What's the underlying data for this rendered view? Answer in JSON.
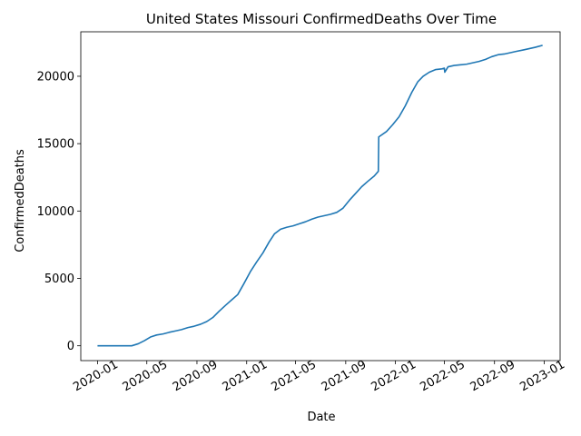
{
  "chart_data": {
    "type": "line",
    "title": "United States Missouri ConfirmedDeaths Over Time",
    "xlabel": "Date",
    "ylabel": "ConfirmedDeaths",
    "x_ticks": [
      "2020-01",
      "2020-05",
      "2020-09",
      "2021-01",
      "2021-05",
      "2021-09",
      "2022-01",
      "2022-05",
      "2022-09",
      "2023-01"
    ],
    "y_ticks": [
      "0",
      "5000",
      "10000",
      "15000",
      "20000"
    ],
    "ylim": [
      -1100,
      23300
    ],
    "xlim": [
      "2019-11-21",
      "2023-02-09"
    ],
    "grid": false,
    "line_color": "#1f77b4",
    "series": [
      {
        "x": [
          "2020-01-01",
          "2020-03-01",
          "2020-03-25",
          "2020-04-10",
          "2020-04-25",
          "2020-05-10",
          "2020-05-25",
          "2020-06-10",
          "2020-06-25",
          "2020-07-10",
          "2020-07-25",
          "2020-08-10",
          "2020-08-25",
          "2020-09-10",
          "2020-09-25",
          "2020-10-10",
          "2020-10-25",
          "2020-11-10",
          "2020-11-25",
          "2020-12-10",
          "2020-12-25",
          "2021-01-10",
          "2021-01-25",
          "2021-02-10",
          "2021-02-25",
          "2021-03-10",
          "2021-03-25",
          "2021-04-10",
          "2021-04-25",
          "2021-05-10",
          "2021-05-25",
          "2021-06-10",
          "2021-06-25",
          "2021-07-10",
          "2021-07-25",
          "2021-08-10",
          "2021-08-25",
          "2021-09-10",
          "2021-09-25",
          "2021-10-10",
          "2021-10-25",
          "2021-11-10",
          "2021-11-20",
          "2021-11-21",
          "2021-12-10",
          "2021-12-25",
          "2022-01-10",
          "2022-01-25",
          "2022-02-10",
          "2022-02-25",
          "2022-03-10",
          "2022-03-25",
          "2022-04-10",
          "2022-04-25",
          "2022-05-01",
          "2022-05-02",
          "2022-05-10",
          "2022-05-25",
          "2022-06-10",
          "2022-06-25",
          "2022-07-10",
          "2022-07-25",
          "2022-08-10",
          "2022-08-25",
          "2022-09-10",
          "2022-09-25",
          "2022-10-10",
          "2022-10-25",
          "2022-11-10",
          "2022-11-25",
          "2022-12-10",
          "2022-12-28"
        ],
        "y": [
          0,
          0,
          0,
          150,
          380,
          650,
          800,
          880,
          1000,
          1100,
          1200,
          1350,
          1450,
          1600,
          1800,
          2100,
          2550,
          3000,
          3400,
          3800,
          4600,
          5500,
          6200,
          6900,
          7700,
          8300,
          8650,
          8800,
          8900,
          9050,
          9200,
          9400,
          9550,
          9650,
          9750,
          9900,
          10200,
          10800,
          11300,
          11800,
          12200,
          12600,
          12950,
          15500,
          15900,
          16400,
          17000,
          17800,
          18800,
          19600,
          20000,
          20300,
          20500,
          20550,
          20600,
          20300,
          20700,
          20800,
          20850,
          20900,
          21000,
          21100,
          21250,
          21450,
          21600,
          21650,
          21750,
          21850,
          21950,
          22050,
          22150,
          22300
        ]
      }
    ]
  }
}
